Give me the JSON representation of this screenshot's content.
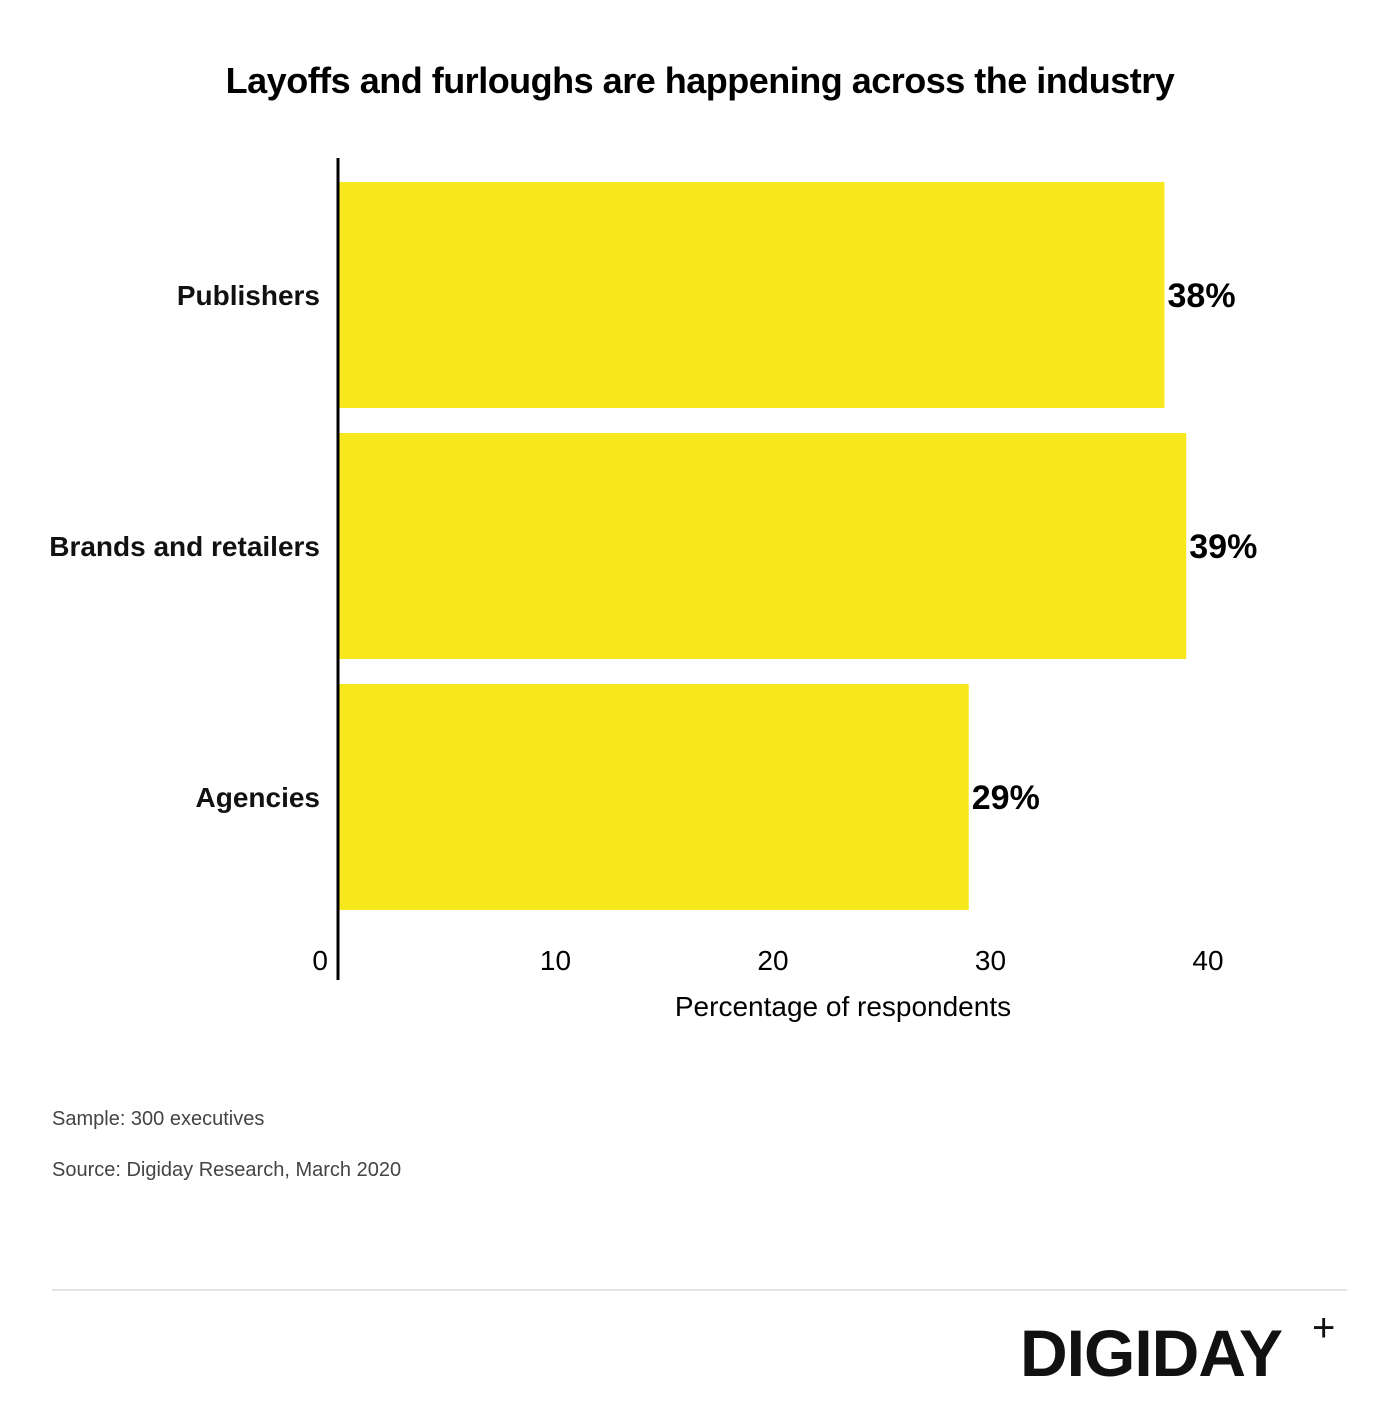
{
  "chart_data": {
    "type": "bar",
    "orientation": "horizontal",
    "title": "Layoffs and furloughs are happening across the industry",
    "categories": [
      "Publishers",
      "Brands and retailers",
      "Agencies"
    ],
    "values": [
      38,
      39,
      29
    ],
    "data_labels": [
      "38%",
      "39%",
      "29%"
    ],
    "xlabel": "Percentage of respondents",
    "ylabel": "",
    "xlim": [
      0,
      40
    ],
    "xticks": [
      0,
      10,
      20,
      30,
      40
    ],
    "xtick_labels": [
      "0",
      "10",
      "20",
      "30",
      "40"
    ],
    "grid": false,
    "legend": "none",
    "bar_color": "#F7E81E"
  },
  "notes": {
    "sample": "Sample: 300 executives",
    "source": "Source: Digiday Research, March 2020"
  },
  "brand": {
    "name": "DIGIDAY",
    "plus": "+"
  }
}
